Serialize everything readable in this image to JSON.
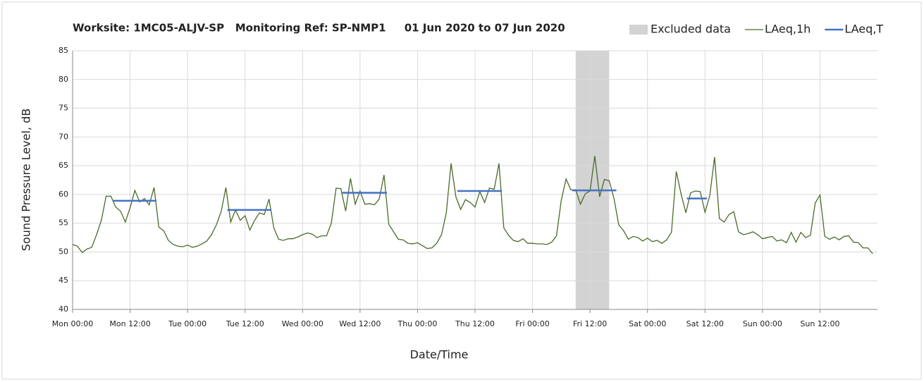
{
  "chart_data": {
    "type": "line",
    "title": "Worksite: 1MC05-ALJV-SP   Monitoring Ref: SP-NMP1     01 Jun 2020 to 07 Jun 2020",
    "xlabel": "Date/Time",
    "ylabel": "Sound Pressure Level, dB",
    "xlim": [
      0,
      168
    ],
    "xticks": [
      {
        "value": 0,
        "label": "Mon 00:00"
      },
      {
        "value": 12,
        "label": "Mon 12:00"
      },
      {
        "value": 24,
        "label": "Tue 00:00"
      },
      {
        "value": 36,
        "label": "Tue 12:00"
      },
      {
        "value": 48,
        "label": "Wed 00:00"
      },
      {
        "value": 60,
        "label": "Wed 12:00"
      },
      {
        "value": 72,
        "label": "Thu 00:00"
      },
      {
        "value": 84,
        "label": "Thu 12:00"
      },
      {
        "value": 96,
        "label": "Fri 00:00"
      },
      {
        "value": 108,
        "label": "Fri 12:00"
      },
      {
        "value": 120,
        "label": "Sat 00:00"
      },
      {
        "value": 132,
        "label": "Sat 12:00"
      },
      {
        "value": 144,
        "label": "Sun 00:00"
      },
      {
        "value": 156,
        "label": "Sun 12:00"
      }
    ],
    "ylim": [
      40,
      85
    ],
    "yticks": [
      40,
      45,
      50,
      55,
      60,
      65,
      70,
      75,
      80,
      85
    ],
    "grid": true,
    "legend": "top-right",
    "shaded_regions": [
      {
        "name": "Excluded data",
        "color": "#d3d3d3",
        "x": [
          105,
          112
        ]
      }
    ],
    "series": [
      {
        "name": "LAeq,1h",
        "color": "#4a6b2a",
        "x": [
          0,
          1,
          2,
          3,
          4,
          5,
          6,
          7,
          8,
          9,
          10,
          11,
          12,
          13,
          14,
          15,
          16,
          17,
          18,
          19,
          20,
          21,
          22,
          23,
          24,
          25,
          26,
          27,
          28,
          29,
          30,
          31,
          32,
          33,
          34,
          35,
          36,
          37,
          38,
          39,
          40,
          41,
          42,
          43,
          44,
          45,
          46,
          47,
          48,
          49,
          50,
          51,
          52,
          53,
          54,
          55,
          56,
          57,
          58,
          59,
          60,
          61,
          62,
          63,
          64,
          65,
          66,
          67,
          68,
          69,
          70,
          71,
          72,
          73,
          74,
          75,
          76,
          77,
          78,
          79,
          80,
          81,
          82,
          83,
          84,
          85,
          86,
          87,
          88,
          89,
          90,
          91,
          92,
          93,
          94,
          95,
          96,
          97,
          98,
          99,
          100,
          101,
          102,
          103,
          104,
          105,
          106,
          107,
          108,
          109,
          110,
          111,
          112,
          113,
          114,
          115,
          116,
          117,
          118,
          119,
          120,
          121,
          122,
          123,
          124,
          125,
          126,
          127,
          128,
          129,
          130,
          131,
          132,
          133,
          134,
          135,
          136,
          137,
          138,
          139,
          140,
          141,
          142,
          143,
          144,
          145,
          146,
          147,
          148,
          149,
          150,
          151,
          152,
          153,
          154,
          155,
          156,
          157,
          158,
          159,
          160,
          161,
          162,
          163,
          164,
          165,
          166,
          167
        ],
        "values": [
          51.3,
          51.0,
          49.9,
          50.5,
          50.8,
          53,
          55.5,
          59.7,
          59.7,
          57.8,
          57.1,
          55.2,
          57.7,
          60.7,
          58.7,
          59.3,
          58.2,
          61.2,
          54.3,
          53.7,
          52,
          51.3,
          51.0,
          50.9,
          51.2,
          50.8,
          51.0,
          51.4,
          51.9,
          53,
          54.7,
          57,
          61.2,
          55.2,
          57.3,
          55.5,
          56.3,
          53.8,
          55.5,
          56.8,
          56.5,
          59.2,
          54.2,
          52.2,
          52,
          52.3,
          52.3,
          52.6,
          53,
          53.3,
          53.1,
          52.5,
          52.8,
          52.8,
          55,
          61.1,
          61,
          57.1,
          62.8,
          58.3,
          60.6,
          58.3,
          58.4,
          58.2,
          59.2,
          63.4,
          54.8,
          53.5,
          52.2,
          52.1,
          51.5,
          51.4,
          51.6,
          51.1,
          50.6,
          50.7,
          51.5,
          53,
          56.8,
          65.4,
          59.6,
          57.4,
          59.1,
          58.6,
          57.8,
          60.5,
          58.6,
          61.1,
          60.9,
          65.4,
          54.2,
          52.9,
          52,
          51.8,
          52.3,
          51.5,
          51.5,
          51.4,
          51.4,
          51.3,
          51.7,
          52.8,
          59,
          62.7,
          60.8,
          60.8,
          58.3,
          60.1,
          60.6,
          66.7,
          59.6,
          62.6,
          62.4,
          59.3,
          54.7,
          53.7,
          52.2,
          52.7,
          52.5,
          51.9,
          52.4,
          51.8,
          52,
          51.5,
          52.1,
          53.4,
          64,
          60.1,
          56.8,
          60.3,
          60.6,
          60.5,
          56.9,
          59.8,
          66.5,
          55.8,
          55.2,
          56.5,
          57,
          53.5,
          53,
          53.2,
          53.5,
          53,
          52.3,
          52.5,
          52.7,
          51.9,
          52.1,
          51.6,
          53.4,
          51.7,
          53.4,
          52.5,
          52.9,
          58.5,
          59.9,
          52.7,
          52.2,
          52.6,
          52.1,
          52.7,
          52.8,
          51.7,
          51.6,
          50.7,
          50.7,
          49.7
        ]
      },
      {
        "name": "LAeq,T",
        "color": "#4472c4",
        "x": [
          8.4,
          17.5,
          null,
          32.3,
          41.5,
          null,
          56.3,
          65.6,
          null,
          80.3,
          89.6,
          null,
          104.3,
          113.5,
          null,
          128.2,
          132.4
        ],
        "values": [
          58.9,
          58.9,
          null,
          57.3,
          57.3,
          null,
          60.3,
          60.3,
          null,
          60.6,
          60.6,
          null,
          60.7,
          60.7,
          null,
          59.3,
          59.3
        ]
      }
    ]
  }
}
